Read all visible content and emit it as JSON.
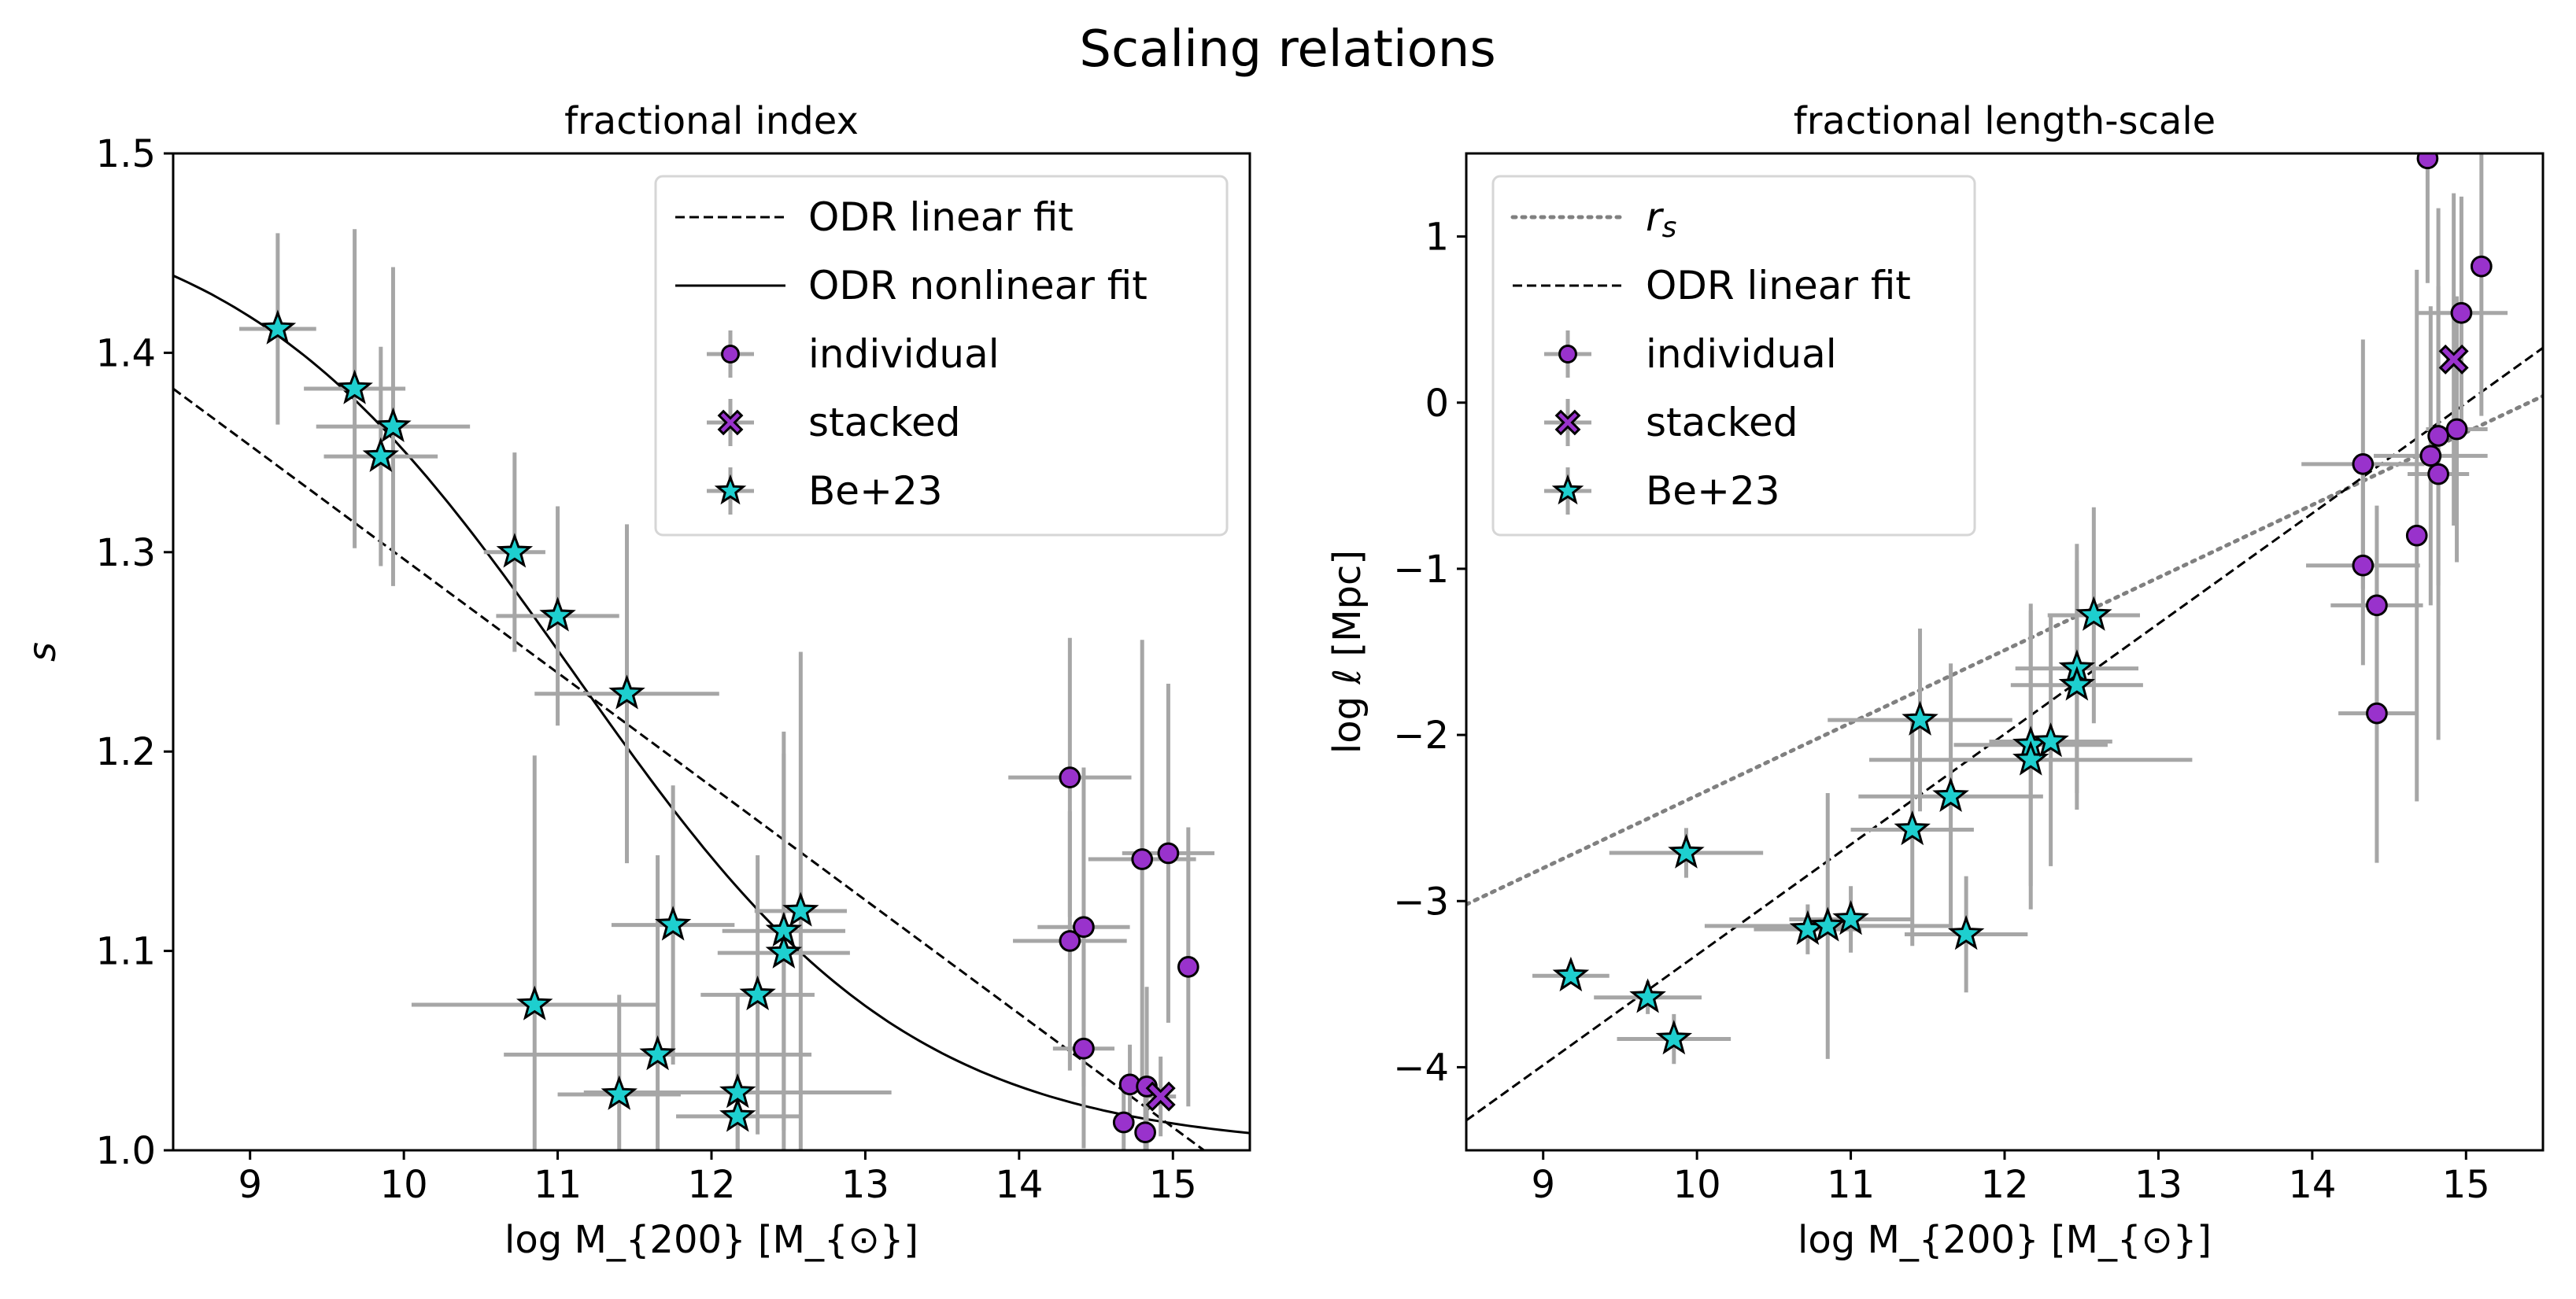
{
  "figure_title": "Scaling relations",
  "chart_data": [
    {
      "type": "scatter",
      "title": "fractional index",
      "xlabel": "log M_{200} [M_{⊙}]",
      "ylabel": "s",
      "xlim": [
        8.5,
        15.5
      ],
      "ylim": [
        1.0,
        1.5
      ],
      "xticks": [
        9,
        10,
        11,
        12,
        13,
        14,
        15
      ],
      "yticks": [
        1.0,
        1.1,
        1.2,
        1.3,
        1.4,
        1.5
      ],
      "ytick_labels": [
        "1.0",
        "1.1",
        "1.2",
        "1.3",
        "1.4",
        "1.5"
      ],
      "legend_position": "top-right",
      "legend": [
        "ODR linear fit",
        "ODR nonlinear fit",
        "individual",
        "stacked",
        "Be+23"
      ],
      "lines": [
        {
          "name": "ODR linear fit",
          "style": "dashed",
          "kind": "linear",
          "x": [
            8.5,
            15.5
          ],
          "y": [
            1.382,
            0.983
          ]
        },
        {
          "name": "ODR nonlinear fit",
          "style": "solid",
          "kind": "sigmoid",
          "params": {
            "base": 1.0,
            "amp": 0.48,
            "x0": 11.1,
            "width": 1.1
          }
        }
      ],
      "series": [
        {
          "name": "Be+23",
          "marker": "star",
          "color": "#1ecfcf",
          "points": [
            [
              9.18,
              1.412,
              0.25,
              0.048
            ],
            [
              9.68,
              1.382,
              0.33,
              0.08
            ],
            [
              9.93,
              1.363,
              0.5,
              0.08
            ],
            [
              9.85,
              1.348,
              0.37,
              0.055
            ],
            [
              10.72,
              1.3,
              0.2,
              0.05
            ],
            [
              11.0,
              1.268,
              0.4,
              0.055
            ],
            [
              11.45,
              1.229,
              0.6,
              0.085
            ],
            [
              10.85,
              1.073,
              0.8,
              0.125
            ],
            [
              11.75,
              1.113,
              0.4,
              0.07
            ],
            [
              12.58,
              1.12,
              0.3,
              0.13
            ],
            [
              12.47,
              1.11,
              0.4,
              0.1
            ],
            [
              12.47,
              1.099,
              0.43,
              0.1
            ],
            [
              12.3,
              1.078,
              0.37,
              0.07
            ],
            [
              11.65,
              1.048,
              1.0,
              0.1
            ],
            [
              11.4,
              1.028,
              0.4,
              0.05
            ],
            [
              12.17,
              1.029,
              1.0,
              0.05
            ],
            [
              12.17,
              1.017,
              0.4,
              0.03
            ]
          ]
        },
        {
          "name": "individual",
          "marker": "circle",
          "color": "#9932cc",
          "points": [
            [
              14.33,
              1.187,
              0.4,
              0.07
            ],
            [
              14.8,
              1.146,
              0.35,
              0.11
            ],
            [
              14.97,
              1.149,
              0.3,
              0.085
            ],
            [
              14.42,
              1.112,
              0.3,
              0.08
            ],
            [
              14.33,
              1.105,
              0.37,
              0.065
            ],
            [
              15.1,
              1.092,
              0.05,
              0.07
            ],
            [
              14.42,
              1.051,
              0.2,
              0.05
            ],
            [
              14.72,
              1.033,
              0.05,
              0.02
            ],
            [
              14.83,
              1.032,
              0.05,
              0.05
            ],
            [
              14.68,
              1.014,
              0.05,
              0.02
            ],
            [
              14.82,
              1.009,
              0.03,
              0.02
            ]
          ]
        },
        {
          "name": "stacked",
          "marker": "x",
          "color": "#9932cc",
          "points": [
            [
              14.92,
              1.027,
              0.1,
              0.02
            ]
          ]
        }
      ]
    },
    {
      "type": "scatter",
      "title": "fractional length-scale",
      "xlabel": "log M_{200} [M_{⊙}]",
      "ylabel": "log ℓ [Mpc]",
      "xlim": [
        8.5,
        15.5
      ],
      "ylim": [
        -4.5,
        1.5
      ],
      "xticks": [
        9,
        10,
        11,
        12,
        13,
        14,
        15
      ],
      "yticks": [
        -4,
        -3,
        -2,
        -1,
        0,
        1
      ],
      "ytick_labels": [
        "−4",
        "−3",
        "−2",
        "−1",
        "0",
        "1"
      ],
      "legend_position": "top-left",
      "legend": [
        "r_{s}",
        "ODR linear fit",
        "individual",
        "stacked",
        "Be+23"
      ],
      "lines": [
        {
          "name": "r_s",
          "style": "dotted",
          "kind": "linear",
          "x": [
            8.5,
            15.5
          ],
          "y": [
            -3.02,
            0.04
          ]
        },
        {
          "name": "ODR linear fit",
          "style": "dashed",
          "kind": "linear",
          "x": [
            8.5,
            15.5
          ],
          "y": [
            -4.32,
            0.33
          ]
        }
      ],
      "series": [
        {
          "name": "Be+23",
          "marker": "star",
          "color": "#1ecfcf",
          "points": [
            [
              9.18,
              -3.45,
              0.25,
              0.05
            ],
            [
              9.68,
              -3.58,
              0.35,
              0.1
            ],
            [
              9.85,
              -3.83,
              0.37,
              0.15
            ],
            [
              9.93,
              -2.71,
              0.5,
              0.15
            ],
            [
              10.72,
              -3.17,
              0.35,
              0.15
            ],
            [
              10.85,
              -3.15,
              0.8,
              0.8
            ],
            [
              11.0,
              -3.11,
              0.4,
              0.2
            ],
            [
              11.4,
              -2.57,
              0.4,
              0.7
            ],
            [
              11.45,
              -1.91,
              0.6,
              0.55
            ],
            [
              11.65,
              -2.37,
              0.6,
              0.8
            ],
            [
              11.75,
              -3.2,
              0.4,
              0.35
            ],
            [
              12.17,
              -2.06,
              0.5,
              0.85
            ],
            [
              12.17,
              -2.15,
              1.05,
              0.9
            ],
            [
              12.3,
              -2.04,
              0.4,
              0.75
            ],
            [
              12.47,
              -1.6,
              0.4,
              0.75
            ],
            [
              12.47,
              -1.7,
              0.43,
              0.75
            ],
            [
              12.58,
              -1.28,
              0.3,
              0.65
            ]
          ]
        },
        {
          "name": "individual",
          "marker": "circle",
          "color": "#9932cc",
          "points": [
            [
              14.75,
              1.47,
              0.05,
              0.75
            ],
            [
              15.1,
              0.82,
              0.05,
              0.9
            ],
            [
              14.97,
              0.54,
              0.3,
              0.7
            ],
            [
              14.94,
              -0.16,
              0.2,
              0.8
            ],
            [
              14.82,
              -0.2,
              0.05,
              0.9
            ],
            [
              14.77,
              -0.32,
              0.37,
              0.9
            ],
            [
              14.33,
              -0.37,
              0.4,
              0.75
            ],
            [
              14.82,
              -0.43,
              0.2,
              1.6
            ],
            [
              14.68,
              -0.8,
              0.05,
              1.6
            ],
            [
              14.33,
              -0.98,
              0.37,
              0.6
            ],
            [
              14.42,
              -1.22,
              0.3,
              0.6
            ],
            [
              14.42,
              -1.87,
              0.25,
              0.9
            ]
          ]
        },
        {
          "name": "stacked",
          "marker": "x",
          "color": "#9932cc",
          "points": [
            [
              14.92,
              0.26,
              0.05,
              1.0
            ]
          ]
        }
      ]
    }
  ]
}
